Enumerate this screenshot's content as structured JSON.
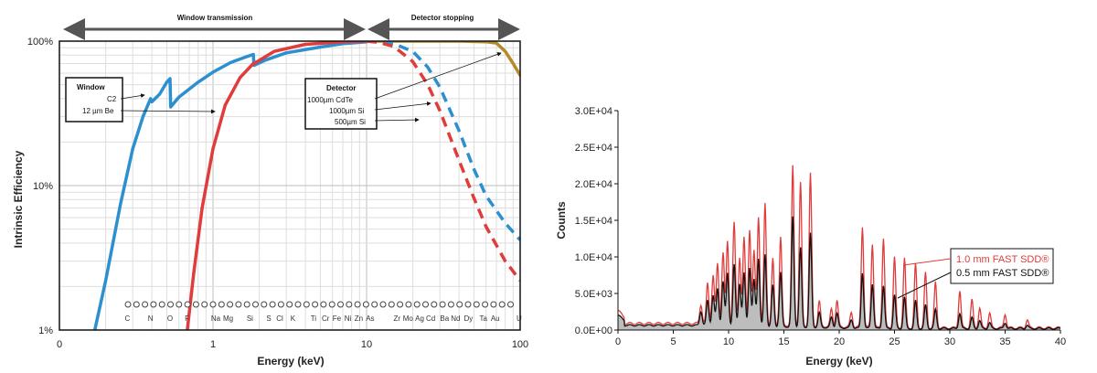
{
  "chart_data": [
    {
      "type": "line",
      "xscale": "log",
      "yscale": "log",
      "xlabel": "Energy (keV)",
      "ylabel": "Intrinsic Efficiency",
      "x_ticks": [
        "0",
        "1",
        "10",
        "100"
      ],
      "y_ticks": [
        "1%",
        "10%",
        "100%"
      ],
      "xlim": [
        0.1,
        100
      ],
      "ylim": [
        1,
        100
      ],
      "grid": true,
      "region_labels": [
        "Window transmission",
        "Detector stopping"
      ],
      "window_box": {
        "title": "Window",
        "items": [
          "C2",
          "12 µm Be"
        ]
      },
      "detector_box": {
        "title": "Detector",
        "items": [
          "1000µm CdTe",
          "1000µm Si",
          "500µm Si"
        ]
      },
      "element_labels": [
        "C",
        "N",
        "O",
        "F",
        "Na",
        "Mg",
        "Si",
        "S",
        "Cl",
        "K",
        "Ti",
        "Cr",
        "Fe",
        "Ni",
        "Zn",
        "As",
        "Zr",
        "Mo",
        "Ag",
        "Cd",
        "Ba",
        "Nd",
        "Dy",
        "Ta",
        "Au",
        "U"
      ],
      "element_energies": [
        0.277,
        0.392,
        0.525,
        0.677,
        1.041,
        1.254,
        1.74,
        2.308,
        2.622,
        3.314,
        4.511,
        5.415,
        6.404,
        7.478,
        8.639,
        10.544,
        15.775,
        17.48,
        22.163,
        23.174,
        32.194,
        37.361,
        45.998,
        57.532,
        68.804,
        98.439
      ],
      "series": [
        {
          "name": "C2",
          "color": "#2c8fd0",
          "style": "solid",
          "x": [
            0.17,
            0.2,
            0.25,
            0.3,
            0.35,
            0.392,
            0.4,
            0.45,
            0.5,
            0.525,
            0.53,
            0.6,
            0.8,
            1.0,
            1.3,
            1.6,
            1.83,
            1.85,
            2.2,
            3,
            5,
            7,
            10
          ],
          "y": [
            1.0,
            2.2,
            7.5,
            18,
            30,
            40,
            38,
            43,
            52,
            55,
            35,
            41,
            52,
            61,
            71,
            77,
            81,
            68,
            74,
            83,
            91,
            96,
            99
          ]
        },
        {
          "name": "12 µm Be",
          "color": "#e03c3c",
          "style": "solid",
          "x": [
            0.68,
            0.75,
            0.85,
            1.0,
            1.2,
            1.5,
            1.83,
            1.85,
            2.5,
            4,
            7,
            10
          ],
          "y": [
            1.0,
            2.5,
            7.0,
            18,
            36,
            56,
            70,
            70,
            85,
            95,
            99,
            100
          ]
        },
        {
          "name": "1000µm CdTe",
          "color": "#b48a2a",
          "style": "solid",
          "x": [
            10,
            20,
            40,
            60,
            70,
            80,
            90,
            100
          ],
          "y": [
            100,
            100,
            100,
            99,
            97,
            85,
            70,
            58
          ]
        },
        {
          "name": "1000µm Si",
          "color": "#2c8fd0",
          "style": "dashed",
          "x": [
            10,
            12,
            15,
            20,
            25,
            30,
            40,
            50,
            60,
            80,
            100
          ],
          "y": [
            100,
            99,
            96,
            85,
            66,
            48,
            24,
            13,
            8.5,
            5.5,
            4.2
          ]
        },
        {
          "name": "500µm Si",
          "color": "#e03c3c",
          "style": "dashed",
          "x": [
            10,
            12,
            15,
            20,
            25,
            30,
            40,
            50,
            60,
            80,
            100
          ],
          "y": [
            100,
            98,
            92,
            72,
            50,
            33,
            15,
            8.2,
            5.2,
            3.0,
            2.2
          ]
        }
      ]
    },
    {
      "type": "line",
      "xlabel": "Energy (keV)",
      "ylabel": "Counts",
      "xlim": [
        0,
        40
      ],
      "ylim": [
        0,
        30000
      ],
      "x_ticks": [
        "0",
        "5",
        "10",
        "15",
        "20",
        "25",
        "30",
        "35",
        "40"
      ],
      "y_ticks": [
        "0.0E+00",
        "5.0E+03",
        "1.0E+04",
        "1.5E+04",
        "2.0E+04",
        "2.5E+04",
        "3.0E+04"
      ],
      "grid": false,
      "legend_location": "right",
      "series": [
        {
          "name": "1.0 mm FAST SDD®",
          "color": "#e03c3c",
          "peaks": [
            {
              "x": 7.5,
              "y": 2600
            },
            {
              "x": 8.1,
              "y": 5500
            },
            {
              "x": 8.6,
              "y": 6600
            },
            {
              "x": 9.0,
              "y": 8200
            },
            {
              "x": 9.5,
              "y": 9700
            },
            {
              "x": 9.9,
              "y": 11300
            },
            {
              "x": 10.5,
              "y": 13800
            },
            {
              "x": 11.0,
              "y": 9200
            },
            {
              "x": 11.4,
              "y": 11800
            },
            {
              "x": 11.9,
              "y": 13000
            },
            {
              "x": 12.3,
              "y": 10000
            },
            {
              "x": 12.7,
              "y": 14800
            },
            {
              "x": 13.3,
              "y": 16600
            },
            {
              "x": 14.0,
              "y": 9000
            },
            {
              "x": 14.7,
              "y": 12000
            },
            {
              "x": 15.8,
              "y": 21800
            },
            {
              "x": 16.5,
              "y": 19500
            },
            {
              "x": 17.4,
              "y": 20800
            },
            {
              "x": 18.2,
              "y": 3400
            },
            {
              "x": 19.3,
              "y": 2400
            },
            {
              "x": 19.8,
              "y": 3600
            },
            {
              "x": 21.1,
              "y": 2000
            },
            {
              "x": 22.1,
              "y": 13800
            },
            {
              "x": 23.0,
              "y": 11500
            },
            {
              "x": 24.0,
              "y": 12300
            },
            {
              "x": 25.0,
              "y": 9700
            },
            {
              "x": 25.9,
              "y": 9500
            },
            {
              "x": 26.9,
              "y": 8700
            },
            {
              "x": 27.8,
              "y": 7500
            },
            {
              "x": 28.7,
              "y": 6200
            },
            {
              "x": 30.9,
              "y": 5100
            },
            {
              "x": 32.0,
              "y": 3800
            },
            {
              "x": 32.7,
              "y": 2700
            },
            {
              "x": 33.6,
              "y": 2000
            },
            {
              "x": 35.0,
              "y": 1900
            },
            {
              "x": 37.0,
              "y": 1100
            }
          ]
        },
        {
          "name": "0.5 mm FAST SDD®",
          "color": "#111111",
          "peaks": [
            {
              "x": 7.5,
              "y": 1900
            },
            {
              "x": 8.1,
              "y": 3400
            },
            {
              "x": 8.6,
              "y": 4100
            },
            {
              "x": 9.0,
              "y": 5000
            },
            {
              "x": 9.5,
              "y": 6000
            },
            {
              "x": 9.9,
              "y": 7200
            },
            {
              "x": 10.5,
              "y": 8300
            },
            {
              "x": 11.0,
              "y": 5800
            },
            {
              "x": 11.4,
              "y": 7200
            },
            {
              "x": 11.9,
              "y": 8000
            },
            {
              "x": 12.3,
              "y": 6300
            },
            {
              "x": 12.7,
              "y": 9300
            },
            {
              "x": 13.3,
              "y": 9800
            },
            {
              "x": 14.0,
              "y": 5600
            },
            {
              "x": 14.7,
              "y": 7400
            },
            {
              "x": 15.8,
              "y": 15000
            },
            {
              "x": 16.5,
              "y": 10800
            },
            {
              "x": 17.4,
              "y": 12800
            },
            {
              "x": 18.2,
              "y": 2000
            },
            {
              "x": 19.3,
              "y": 1400
            },
            {
              "x": 19.8,
              "y": 2000
            },
            {
              "x": 21.1,
              "y": 1100
            },
            {
              "x": 22.1,
              "y": 7600
            },
            {
              "x": 23.0,
              "y": 6100
            },
            {
              "x": 24.0,
              "y": 5900
            },
            {
              "x": 25.0,
              "y": 4600
            },
            {
              "x": 25.9,
              "y": 4300
            },
            {
              "x": 26.9,
              "y": 3800
            },
            {
              "x": 27.8,
              "y": 3200
            },
            {
              "x": 28.7,
              "y": 2600
            },
            {
              "x": 30.9,
              "y": 2100
            },
            {
              "x": 32.0,
              "y": 1500
            },
            {
              "x": 32.7,
              "y": 1100
            },
            {
              "x": 33.6,
              "y": 800
            },
            {
              "x": 35.0,
              "y": 800
            },
            {
              "x": 37.0,
              "y": 450
            }
          ]
        }
      ]
    }
  ]
}
